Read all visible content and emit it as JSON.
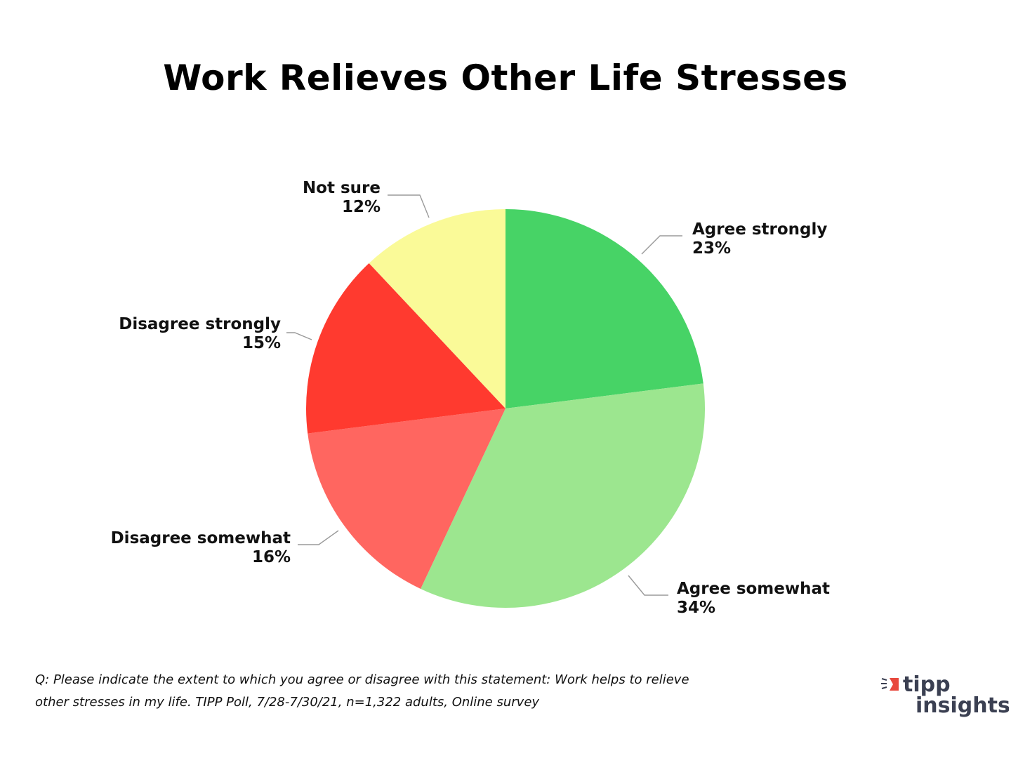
{
  "title": "Work Relieves Other Life Stresses",
  "chart_data": {
    "type": "pie",
    "title": "Work Relieves Other Life Stresses",
    "slices": [
      {
        "label": "Agree strongly",
        "value": 23,
        "display": "23%",
        "color": "#47d366"
      },
      {
        "label": "Agree somewhat",
        "value": 34,
        "display": "34%",
        "color": "#9ce68f"
      },
      {
        "label": "Disagree somewhat",
        "value": 16,
        "display": "16%",
        "color": "#ff6660"
      },
      {
        "label": "Disagree strongly",
        "value": 15,
        "display": "15%",
        "color": "#ff3a2f"
      },
      {
        "label": "Not sure",
        "value": 12,
        "display": "12%",
        "color": "#fafa98"
      }
    ]
  },
  "footnote": {
    "line1": "Q:  Please indicate the extent to which you agree or disagree with this statement:  Work helps to relieve",
    "line2": "other stresses in my life.  TIPP Poll, 7/28-7/30/21, n=1,322 adults, Online survey"
  },
  "logo": {
    "line1": "tipp",
    "line2": "insights",
    "accent_color": "#e8483d",
    "text_color": "#3b4052"
  }
}
